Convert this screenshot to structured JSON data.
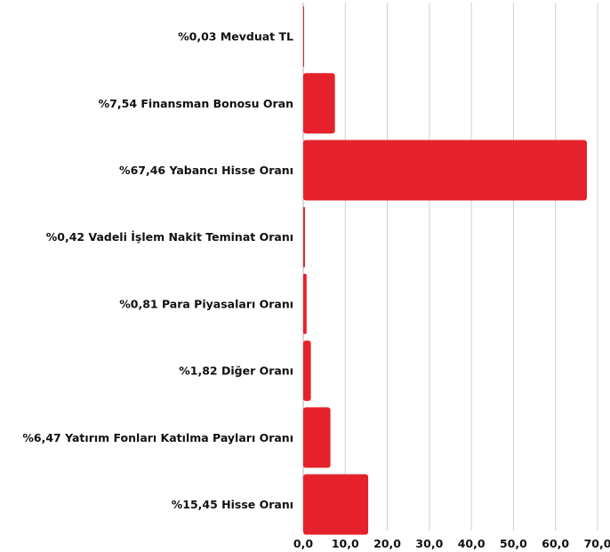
{
  "chart_data": {
    "type": "bar",
    "orientation": "horizontal",
    "categories": [
      "%0,03 Mevduat TL",
      "%7,54 Finansman Bonosu Oran",
      "%67,46 Yabancı Hisse Oranı",
      "%0,42 Vadeli İşlem Nakit Teminat Oranı",
      "%0,81 Para Piyasaları Oranı",
      "%1,82 Diğer Oranı",
      "%6,47 Yatırım Fonları Katılma Payları Oranı",
      "%15,45 Hisse Oranı"
    ],
    "values": [
      0.03,
      7.54,
      67.46,
      0.42,
      0.81,
      1.82,
      6.47,
      15.45
    ],
    "xticks": [
      "0,0",
      "10,0",
      "20,0",
      "30,0",
      "40,0",
      "50,0",
      "60,0",
      "70,0"
    ],
    "xlim": [
      0,
      70
    ],
    "grid": true,
    "legend": "none",
    "title": "",
    "xlabel": "",
    "ylabel": "",
    "colors": {
      "bar": "#e5222b"
    }
  }
}
